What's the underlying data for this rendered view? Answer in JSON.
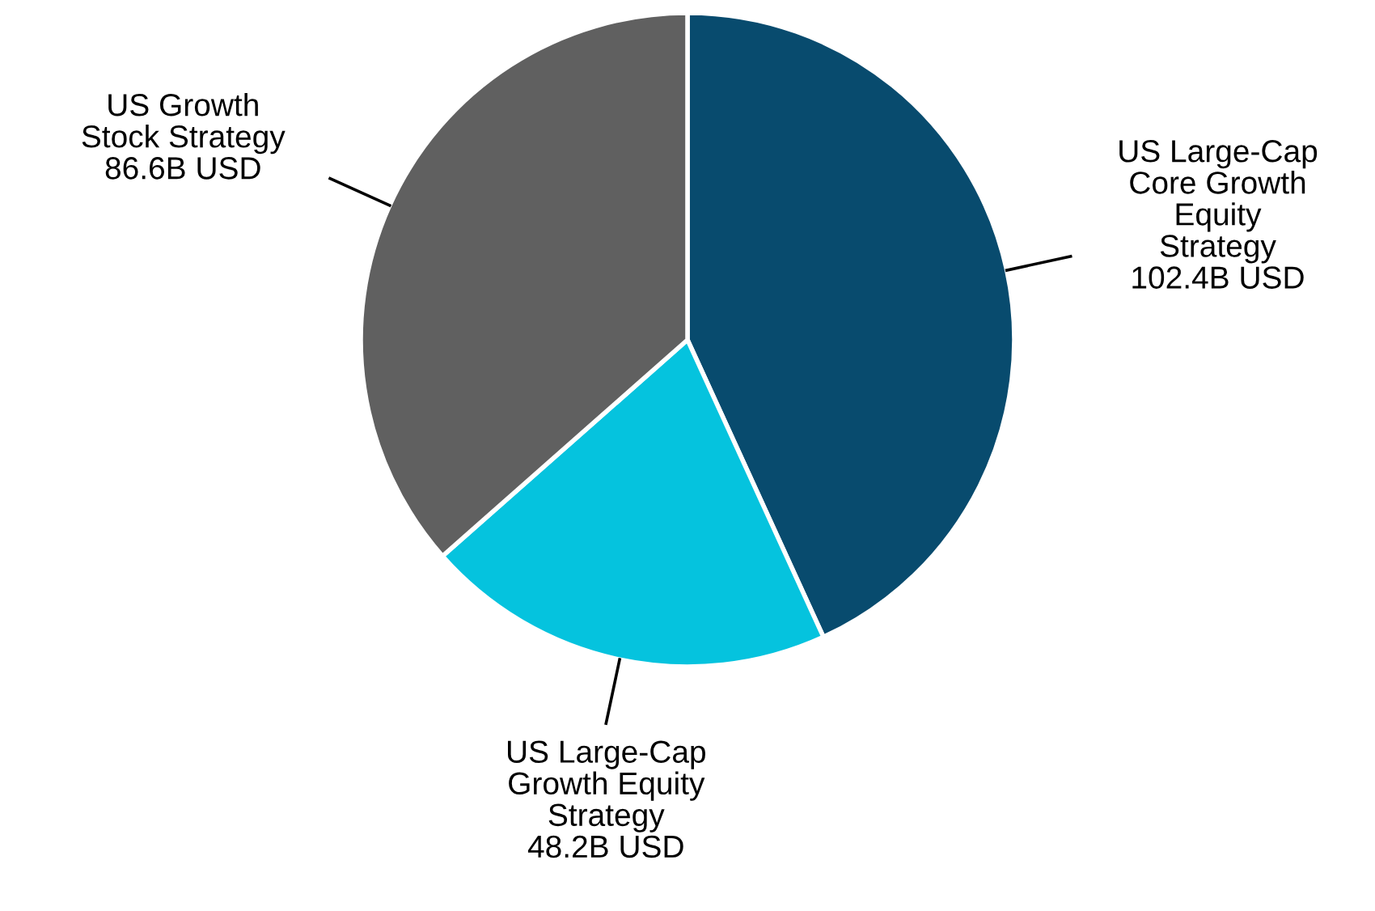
{
  "chart_data": {
    "type": "pie",
    "categories": [
      "US Large-Cap\nCore Growth\nEquity\nStrategy",
      "US Large-Cap\nGrowth Equity\nStrategy",
      "US Growth\nStock Strategy"
    ],
    "values": [
      102.4,
      48.2,
      86.6
    ],
    "value_labels": [
      "102.4B USD",
      "48.2B USD",
      "86.6B USD"
    ],
    "colors": [
      "#084b6e",
      "#05c3de",
      "#606060"
    ]
  }
}
